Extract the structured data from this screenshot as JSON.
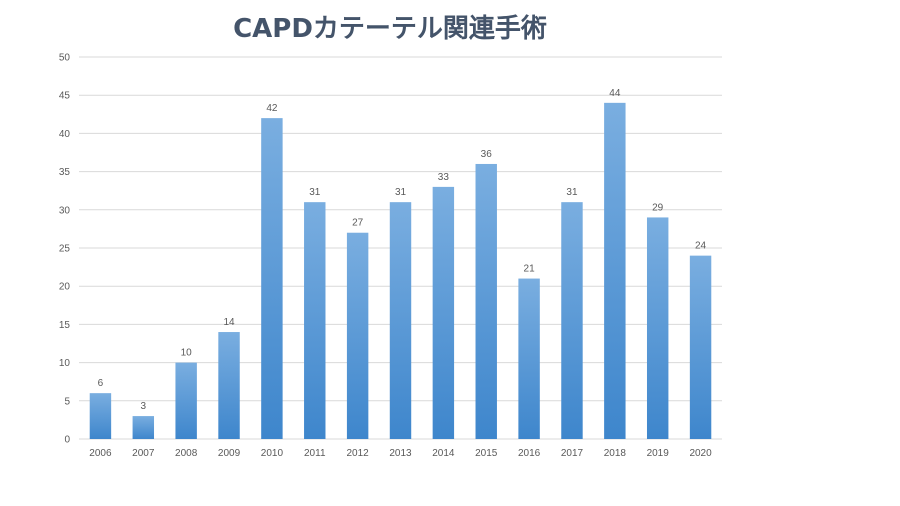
{
  "chart_data": {
    "type": "bar",
    "title": "CAPDカテーテル関連手術",
    "categories": [
      "2006",
      "2007",
      "2008",
      "2009",
      "2010",
      "2011",
      "2012",
      "2013",
      "2014",
      "2015",
      "2016",
      "2017",
      "2018",
      "2019",
      "2020"
    ],
    "values": [
      6,
      3,
      10,
      14,
      42,
      31,
      27,
      31,
      33,
      36,
      21,
      31,
      44,
      29,
      24
    ],
    "ylim": [
      0,
      50
    ],
    "yticks": [
      0,
      5,
      10,
      15,
      20,
      25,
      30,
      35,
      40,
      45,
      50
    ],
    "grid": true,
    "data_labels": true,
    "colors": {
      "bar_top": "#7aaee0",
      "bar_bottom": "#3e86cc",
      "title": "#44546a"
    }
  }
}
